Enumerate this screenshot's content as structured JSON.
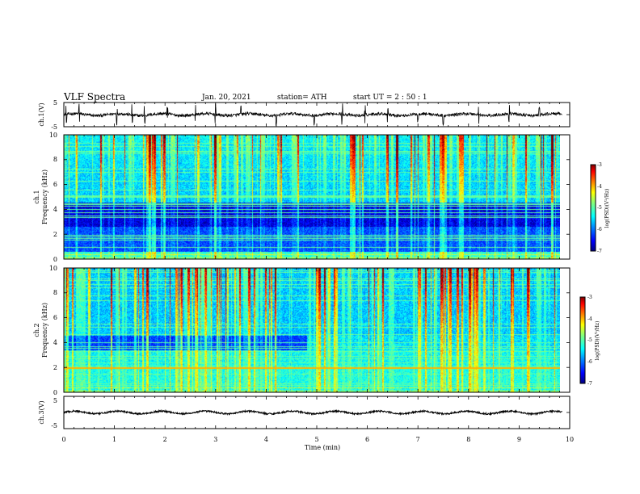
{
  "header": {
    "title": "VLF Spectra",
    "date": "Jan. 20, 2021",
    "station": "station= ATH",
    "start": "start UT =  2 : 50 : 1"
  },
  "colors": {
    "spectrogram_scale": [
      "#00007f",
      "#0000ff",
      "#00a0ff",
      "#00ffff",
      "#7fff7f",
      "#ffff00",
      "#ff7f00",
      "#ff0000",
      "#7f0000"
    ],
    "trace": "#000000"
  },
  "chart_data": [
    {
      "type": "line",
      "name": "ch1-waveform",
      "ylabel": "ch.1(V)",
      "ylim": [
        -5,
        5
      ],
      "yticks": [
        "5",
        "-5"
      ],
      "xlim": [
        0,
        10
      ],
      "baseline": 0,
      "noise_amplitude": 0.6,
      "spike_times": [
        0.05,
        0.3,
        1.05,
        1.35,
        1.6,
        2.05,
        2.6,
        3.0,
        3.5,
        4.2,
        4.95,
        5.5,
        5.95,
        6.4,
        7.0,
        7.5,
        8.2,
        8.8,
        9.4
      ]
    },
    {
      "type": "heatmap",
      "name": "ch1-spectrogram",
      "ylabel_line1": "ch.1",
      "ylabel_line2": "Frequency (kHz)",
      "xlim": [
        0,
        9.85
      ],
      "ylim": [
        0,
        10
      ],
      "yticks": [
        "0",
        "2",
        "4",
        "6",
        "8",
        "10"
      ],
      "colorbar": {
        "label": "log(PSD)(V²/Hz)",
        "range": [
          -7,
          -3
        ],
        "ticks": [
          "-3",
          "-4",
          "-5",
          "-6",
          "-7"
        ]
      }
    },
    {
      "type": "heatmap",
      "name": "ch2-spectrogram",
      "ylabel_line1": "ch.2",
      "ylabel_line2": "Frequency (kHz)",
      "xlim": [
        0,
        9.85
      ],
      "ylim": [
        0,
        10
      ],
      "yticks": [
        "0",
        "2",
        "4",
        "6",
        "8",
        "10"
      ],
      "colorbar": {
        "label": "log(PSD)(V²/Hz)",
        "range": [
          -7,
          -3
        ],
        "ticks": [
          "-3",
          "-4",
          "-5",
          "-6",
          "-7"
        ]
      }
    },
    {
      "type": "line",
      "name": "ch3-waveform",
      "ylabel": "ch.3(V)",
      "ylim": [
        -5,
        5
      ],
      "yticks": [
        "5",
        "-5"
      ],
      "xlim": [
        0,
        10
      ],
      "baseline": 0,
      "noise_amplitude": 0.25,
      "xlabel": "Time (min)",
      "xticks": [
        "0",
        "1",
        "2",
        "3",
        "4",
        "5",
        "6",
        "7",
        "8",
        "9",
        "10"
      ]
    }
  ]
}
